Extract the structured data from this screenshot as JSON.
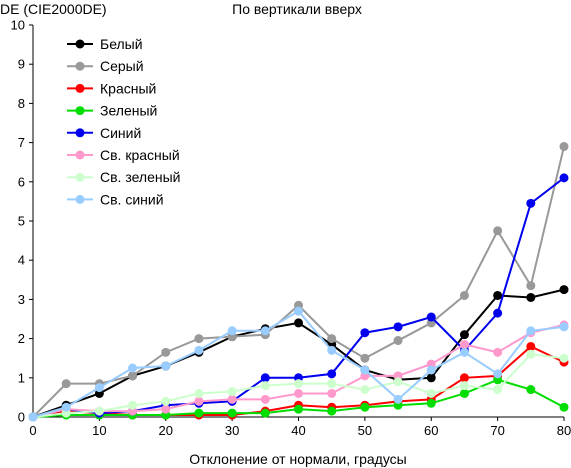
{
  "chart_data": {
    "type": "line",
    "title": "По вертикали вверх",
    "ylabel": "DE (CIE2000DE)",
    "xlabel": "Отклонение от нормали, градусы",
    "xlim": [
      0,
      80
    ],
    "ylim": [
      0,
      10
    ],
    "x_ticks": [
      "0",
      "10",
      "20",
      "30",
      "40",
      "50",
      "60",
      "70",
      "80"
    ],
    "y_ticks": [
      "0",
      "1",
      "2",
      "3",
      "4",
      "5",
      "6",
      "7",
      "8",
      "9",
      "10"
    ],
    "grid": false,
    "legend_position": "top-left",
    "x": [
      0,
      5,
      10,
      15,
      20,
      25,
      30,
      35,
      40,
      45,
      50,
      55,
      60,
      65,
      70,
      75,
      80
    ],
    "series": [
      {
        "name": "Белый",
        "color": "#000000",
        "values": [
          0,
          0.3,
          0.6,
          1.05,
          1.3,
          1.65,
          2.05,
          2.25,
          2.4,
          1.85,
          1.2,
          0.95,
          1.0,
          2.1,
          3.1,
          3.05,
          3.25
        ]
      },
      {
        "name": "Серый",
        "color": "#999999",
        "values": [
          0,
          0.85,
          0.85,
          1.05,
          1.65,
          2.0,
          2.05,
          2.1,
          2.85,
          2.0,
          1.5,
          1.95,
          2.4,
          3.1,
          4.75,
          3.35,
          6.9
        ]
      },
      {
        "name": "Красный",
        "color": "#ff0000",
        "values": [
          0,
          0.15,
          0.1,
          0.05,
          0.05,
          0.05,
          0.05,
          0.15,
          0.3,
          0.25,
          0.3,
          0.4,
          0.45,
          1.0,
          1.05,
          1.8,
          1.4
        ]
      },
      {
        "name": "Зеленый",
        "color": "#00dd00",
        "values": [
          0,
          0.05,
          0.05,
          0.05,
          0.05,
          0.1,
          0.1,
          0.1,
          0.2,
          0.15,
          0.25,
          0.3,
          0.35,
          0.6,
          0.95,
          0.7,
          0.25
        ]
      },
      {
        "name": "Синий",
        "color": "#0000ee",
        "values": [
          0,
          0.2,
          0.1,
          0.15,
          0.3,
          0.35,
          0.4,
          1.0,
          1.0,
          1.1,
          2.15,
          2.3,
          2.55,
          1.7,
          2.65,
          5.45,
          6.1
        ]
      },
      {
        "name": "Св. красный",
        "color": "#ff99cc",
        "values": [
          0,
          0.2,
          0.15,
          0.15,
          0.2,
          0.4,
          0.45,
          0.45,
          0.6,
          0.6,
          1.05,
          1.05,
          1.35,
          1.85,
          1.65,
          2.15,
          2.35
        ]
      },
      {
        "name": "Св. зеленый",
        "color": "#ccffcc",
        "values": [
          0,
          0.1,
          0.15,
          0.3,
          0.4,
          0.6,
          0.65,
          0.8,
          0.85,
          0.85,
          0.7,
          0.9,
          0.6,
          0.8,
          0.7,
          1.6,
          1.5
        ]
      },
      {
        "name": "Св. синий",
        "color": "#99ccff",
        "values": [
          0,
          0.25,
          0.75,
          1.25,
          1.3,
          1.7,
          2.2,
          2.2,
          2.7,
          1.7,
          1.2,
          0.45,
          1.2,
          1.65,
          1.1,
          2.2,
          2.3
        ]
      }
    ]
  }
}
